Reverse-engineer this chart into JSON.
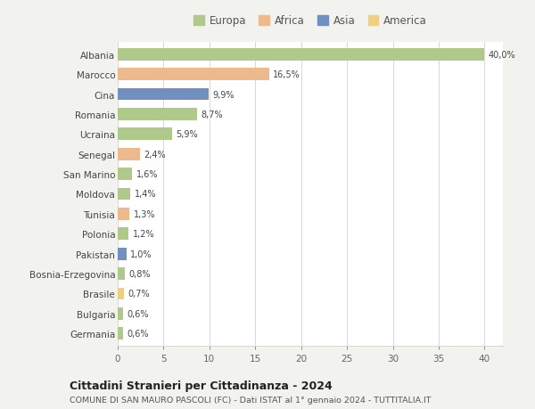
{
  "categories": [
    "Albania",
    "Marocco",
    "Cina",
    "Romania",
    "Ucraina",
    "Senegal",
    "San Marino",
    "Moldova",
    "Tunisia",
    "Polonia",
    "Pakistan",
    "Bosnia-Erzegovina",
    "Brasile",
    "Bulgaria",
    "Germania"
  ],
  "values": [
    40.0,
    16.5,
    9.9,
    8.7,
    5.9,
    2.4,
    1.6,
    1.4,
    1.3,
    1.2,
    1.0,
    0.8,
    0.7,
    0.6,
    0.6
  ],
  "labels": [
    "40,0%",
    "16,5%",
    "9,9%",
    "8,7%",
    "5,9%",
    "2,4%",
    "1,6%",
    "1,4%",
    "1,3%",
    "1,2%",
    "1,0%",
    "0,8%",
    "0,7%",
    "0,6%",
    "0,6%"
  ],
  "colors": [
    "#aec98a",
    "#edba8e",
    "#7090c0",
    "#aec98a",
    "#aec98a",
    "#edba8e",
    "#aec98a",
    "#aec98a",
    "#edba8e",
    "#aec98a",
    "#7090c0",
    "#aec98a",
    "#f0d080",
    "#aec98a",
    "#aec98a"
  ],
  "legend_labels": [
    "Europa",
    "Africa",
    "Asia",
    "America"
  ],
  "legend_colors": [
    "#aec98a",
    "#edba8e",
    "#7090c0",
    "#f0d080"
  ],
  "title": "Cittadini Stranieri per Cittadinanza - 2024",
  "subtitle": "COMUNE DI SAN MAURO PASCOLI (FC) - Dati ISTAT al 1° gennaio 2024 - TUTTITALIA.IT",
  "xlim": [
    0,
    42
  ],
  "xticks": [
    0,
    5,
    10,
    15,
    20,
    25,
    30,
    35,
    40
  ],
  "background_color": "#f2f2ee",
  "plot_bg_color": "#ffffff",
  "grid_color": "#d8d8d8",
  "bar_height": 0.62
}
